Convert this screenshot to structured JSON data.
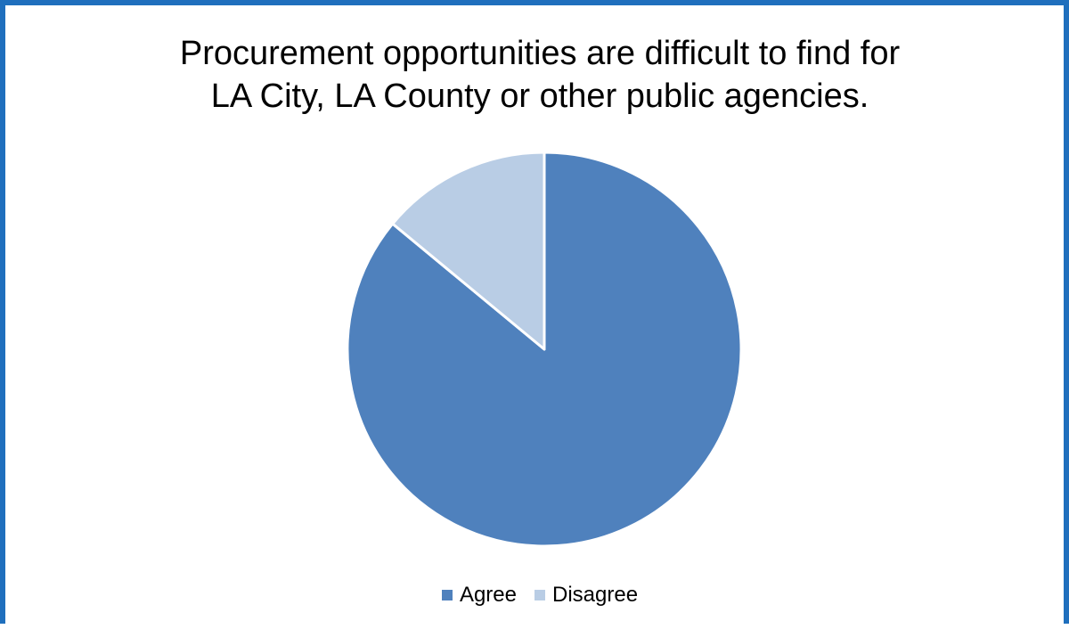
{
  "chart_data": {
    "type": "pie",
    "title_lines": [
      "Procurement opportunities are difficult to find for",
      "LA City, LA County or other public agencies."
    ],
    "categories": [
      "Agree",
      "Disagree"
    ],
    "values": [
      86,
      14
    ],
    "colors": [
      "#4f81bd",
      "#b9cde5"
    ],
    "start_angle": "12 o'clock",
    "direction": "clockwise",
    "legend_position": "bottom"
  },
  "frame": {
    "border_color": "#1f6fbd"
  }
}
